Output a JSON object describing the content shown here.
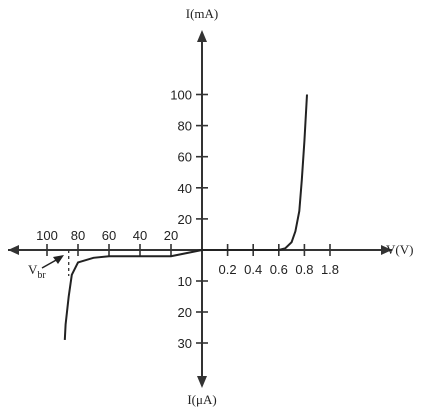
{
  "chart_data": {
    "type": "line",
    "title": "",
    "ylabel": "I(mA)",
    "ylabel_negative": "I(μA)",
    "xlabel": "V(V)",
    "annotation": "V",
    "annotation_sub": "br",
    "x_ticks_positive": [
      "0.2",
      "0.4",
      "0.6",
      "0.8",
      "1.8"
    ],
    "x_ticks_negative": [
      "100",
      "80",
      "60",
      "40",
      "20"
    ],
    "y_ticks_positive": [
      "100",
      "80",
      "60",
      "40",
      "20"
    ],
    "y_ticks_negative": [
      "10",
      "20",
      "30"
    ],
    "forward": {
      "x_unit": "V",
      "y_unit": "mA",
      "x": [
        0.0,
        0.3,
        0.55,
        0.6,
        0.65,
        0.7,
        0.73,
        0.76,
        0.78,
        0.8,
        0.82
      ],
      "y": [
        0,
        0,
        0,
        0,
        1,
        5,
        12,
        25,
        45,
        70,
        100
      ]
    },
    "reverse": {
      "x_unit": "V",
      "y_unit": "μA",
      "x": [
        0,
        10,
        20,
        40,
        60,
        70,
        80,
        84,
        86,
        88,
        88.5
      ],
      "y": [
        0,
        1,
        2,
        2,
        2,
        2.5,
        4,
        8,
        15,
        24,
        29
      ]
    },
    "breakdown_voltage": 88,
    "grid": false,
    "legend": "none"
  }
}
